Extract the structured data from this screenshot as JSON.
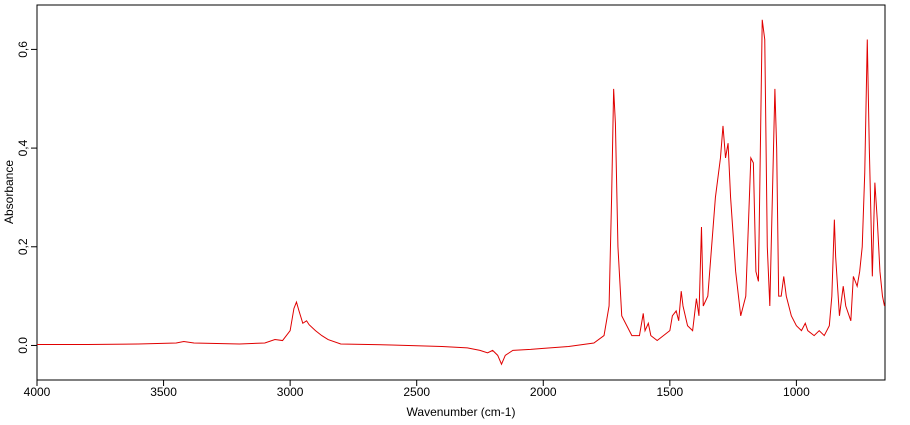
{
  "chart_data": {
    "type": "line",
    "x_label": "Wavenumber (cm-1)",
    "y_label": "Absorbance",
    "xlim": [
      4000,
      650
    ],
    "ylim": [
      -0.07,
      0.69
    ],
    "xticks": [
      4000,
      3500,
      3000,
      2500,
      2000,
      1500,
      1000
    ],
    "yticks": [
      {
        "value": 0,
        "label": "0.0"
      },
      {
        "value": 0.2,
        "label": "0,2"
      },
      {
        "value": 0.4,
        "label": "0,4"
      },
      {
        "value": 0.6,
        "label": "0,6"
      }
    ],
    "series": [
      {
        "color": "#e00000",
        "x": [
          4000,
          3800,
          3600,
          3450,
          3420,
          3380,
          3200,
          3100,
          3060,
          3030,
          3000,
          2985,
          2975,
          2965,
          2950,
          2935,
          2925,
          2900,
          2875,
          2850,
          2800,
          2600,
          2400,
          2300,
          2250,
          2220,
          2200,
          2180,
          2165,
          2150,
          2120,
          2050,
          2000,
          1900,
          1800,
          1760,
          1740,
          1730,
          1722,
          1715,
          1705,
          1690,
          1650,
          1620,
          1605,
          1598,
          1585,
          1575,
          1550,
          1500,
          1490,
          1475,
          1465,
          1455,
          1448,
          1430,
          1410,
          1395,
          1385,
          1375,
          1368,
          1350,
          1320,
          1300,
          1290,
          1280,
          1270,
          1260,
          1240,
          1220,
          1200,
          1180,
          1170,
          1160,
          1150,
          1135,
          1125,
          1115,
          1105,
          1095,
          1085,
          1078,
          1070,
          1060,
          1050,
          1040,
          1020,
          1000,
          980,
          965,
          955,
          930,
          910,
          890,
          870,
          860,
          850,
          845,
          830,
          815,
          805,
          785,
          775,
          760,
          750,
          740,
          730,
          720,
          712,
          700,
          690,
          680,
          670,
          660,
          652
        ],
        "values": [
          0.002,
          0.002,
          0.003,
          0.005,
          0.008,
          0.005,
          0.003,
          0.005,
          0.012,
          0.01,
          0.03,
          0.075,
          0.088,
          0.07,
          0.045,
          0.05,
          0.042,
          0.03,
          0.02,
          0.012,
          0.003,
          0.001,
          -0.002,
          -0.005,
          -0.01,
          -0.015,
          -0.01,
          -0.02,
          -0.038,
          -0.02,
          -0.01,
          -0.008,
          -0.006,
          -0.002,
          0.005,
          0.02,
          0.08,
          0.3,
          0.52,
          0.45,
          0.2,
          0.06,
          0.02,
          0.02,
          0.065,
          0.03,
          0.045,
          0.02,
          0.01,
          0.03,
          0.06,
          0.07,
          0.05,
          0.11,
          0.08,
          0.04,
          0.03,
          0.095,
          0.06,
          0.24,
          0.08,
          0.1,
          0.3,
          0.38,
          0.445,
          0.38,
          0.41,
          0.3,
          0.15,
          0.06,
          0.1,
          0.38,
          0.37,
          0.15,
          0.13,
          0.66,
          0.62,
          0.2,
          0.08,
          0.3,
          0.52,
          0.4,
          0.1,
          0.1,
          0.14,
          0.1,
          0.06,
          0.04,
          0.03,
          0.045,
          0.03,
          0.02,
          0.03,
          0.02,
          0.04,
          0.1,
          0.255,
          0.18,
          0.06,
          0.12,
          0.08,
          0.05,
          0.14,
          0.12,
          0.15,
          0.2,
          0.35,
          0.62,
          0.4,
          0.14,
          0.33,
          0.25,
          0.15,
          0.1,
          0.08
        ]
      }
    ]
  }
}
